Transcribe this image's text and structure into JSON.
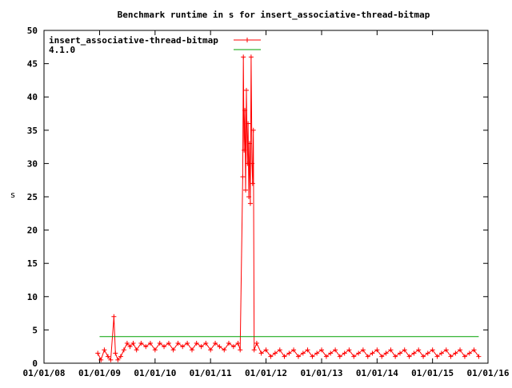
{
  "chart_data": {
    "type": "line",
    "title": "Benchmark runtime in s for insert_associative-thread-bitmap",
    "xlabel": "",
    "ylabel": "s",
    "xlim": [
      "2008-01-01",
      "2016-01-01"
    ],
    "ylim": [
      0,
      50
    ],
    "x_tick_labels": [
      "01/01/08",
      "01/01/09",
      "01/01/10",
      "01/01/11",
      "01/01/12",
      "01/01/13",
      "01/01/14",
      "01/01/15",
      "01/01/16"
    ],
    "x_tick_dates": [
      "2008-01-01",
      "2009-01-01",
      "2010-01-01",
      "2011-01-01",
      "2012-01-01",
      "2013-01-01",
      "2014-01-01",
      "2015-01-01",
      "2016-01-01"
    ],
    "y_ticks": [
      0,
      5,
      10,
      15,
      20,
      25,
      30,
      35,
      40,
      45,
      50
    ],
    "grid": false,
    "legend": "top-left",
    "series": [
      {
        "name": "insert_associative-thread-bitmap",
        "color": "#ff0000",
        "marker": "plus",
        "x": [
          "2008-12-20",
          "2009-01-10",
          "2009-02-01",
          "2009-02-25",
          "2009-03-15",
          "2009-04-05",
          "2009-04-15",
          "2009-05-01",
          "2009-05-20",
          "2009-06-10",
          "2009-07-01",
          "2009-07-20",
          "2009-08-10",
          "2009-09-01",
          "2009-10-01",
          "2009-11-01",
          "2009-12-01",
          "2010-01-01",
          "2010-02-01",
          "2010-03-01",
          "2010-04-01",
          "2010-05-01",
          "2010-06-01",
          "2010-07-01",
          "2010-08-01",
          "2010-09-01",
          "2010-10-01",
          "2010-11-01",
          "2010-12-01",
          "2011-01-01",
          "2011-02-01",
          "2011-03-01",
          "2011-04-01",
          "2011-05-01",
          "2011-06-01",
          "2011-07-01",
          "2011-07-15",
          "2011-08-01",
          "2011-08-05",
          "2011-08-10",
          "2011-08-15",
          "2011-08-20",
          "2011-08-25",
          "2011-09-01",
          "2011-09-05",
          "2011-09-10",
          "2011-09-15",
          "2011-09-20",
          "2011-09-25",
          "2011-10-01",
          "2011-10-05",
          "2011-10-10",
          "2011-10-15",
          "2011-11-01",
          "2011-12-01",
          "2012-01-01",
          "2012-02-01",
          "2012-03-01",
          "2012-04-01",
          "2012-05-01",
          "2012-06-01",
          "2012-07-01",
          "2012-08-01",
          "2012-09-01",
          "2012-10-01",
          "2012-11-01",
          "2012-12-01",
          "2013-01-01",
          "2013-02-01",
          "2013-03-01",
          "2013-04-01",
          "2013-05-01",
          "2013-06-01",
          "2013-07-01",
          "2013-08-01",
          "2013-09-01",
          "2013-10-01",
          "2013-11-01",
          "2013-12-01",
          "2014-01-01",
          "2014-02-01",
          "2014-03-01",
          "2014-04-01",
          "2014-05-01",
          "2014-06-01",
          "2014-07-01",
          "2014-08-01",
          "2014-09-01",
          "2014-10-01",
          "2014-11-01",
          "2014-12-01",
          "2015-01-01",
          "2015-02-01",
          "2015-03-01",
          "2015-04-01",
          "2015-05-01",
          "2015-06-01",
          "2015-07-01",
          "2015-08-01",
          "2015-09-01",
          "2015-10-01",
          "2015-11-01"
        ],
        "y": [
          1.5,
          0.5,
          2,
          1,
          0.5,
          7,
          1.5,
          0.5,
          1,
          2,
          3,
          2.5,
          3,
          2,
          3,
          2.5,
          3,
          2,
          3,
          2.5,
          3,
          2,
          3,
          2.5,
          3,
          2,
          3,
          2.5,
          3,
          2,
          3,
          2.5,
          2,
          3,
          2.5,
          3,
          2,
          28,
          46,
          32,
          38,
          26,
          41,
          30,
          36,
          25,
          33,
          24,
          46,
          30,
          27,
          35,
          2,
          3,
          1.5,
          2,
          1,
          1.5,
          2,
          1,
          1.5,
          2,
          1,
          1.5,
          2,
          1,
          1.5,
          2,
          1,
          1.5,
          2,
          1,
          1.5,
          2,
          1,
          1.5,
          2,
          1,
          1.5,
          2,
          1,
          1.5,
          2,
          1,
          1.5,
          2,
          1,
          1.5,
          2,
          1,
          1.5,
          2,
          1,
          1.5,
          2,
          1,
          1.5,
          2,
          1,
          1.5,
          2,
          1
        ]
      },
      {
        "name": "4.1.0",
        "color": "#00a000",
        "marker": "none",
        "x": [
          "2009-01-01",
          "2015-11-01"
        ],
        "y": [
          4,
          4
        ]
      }
    ]
  }
}
